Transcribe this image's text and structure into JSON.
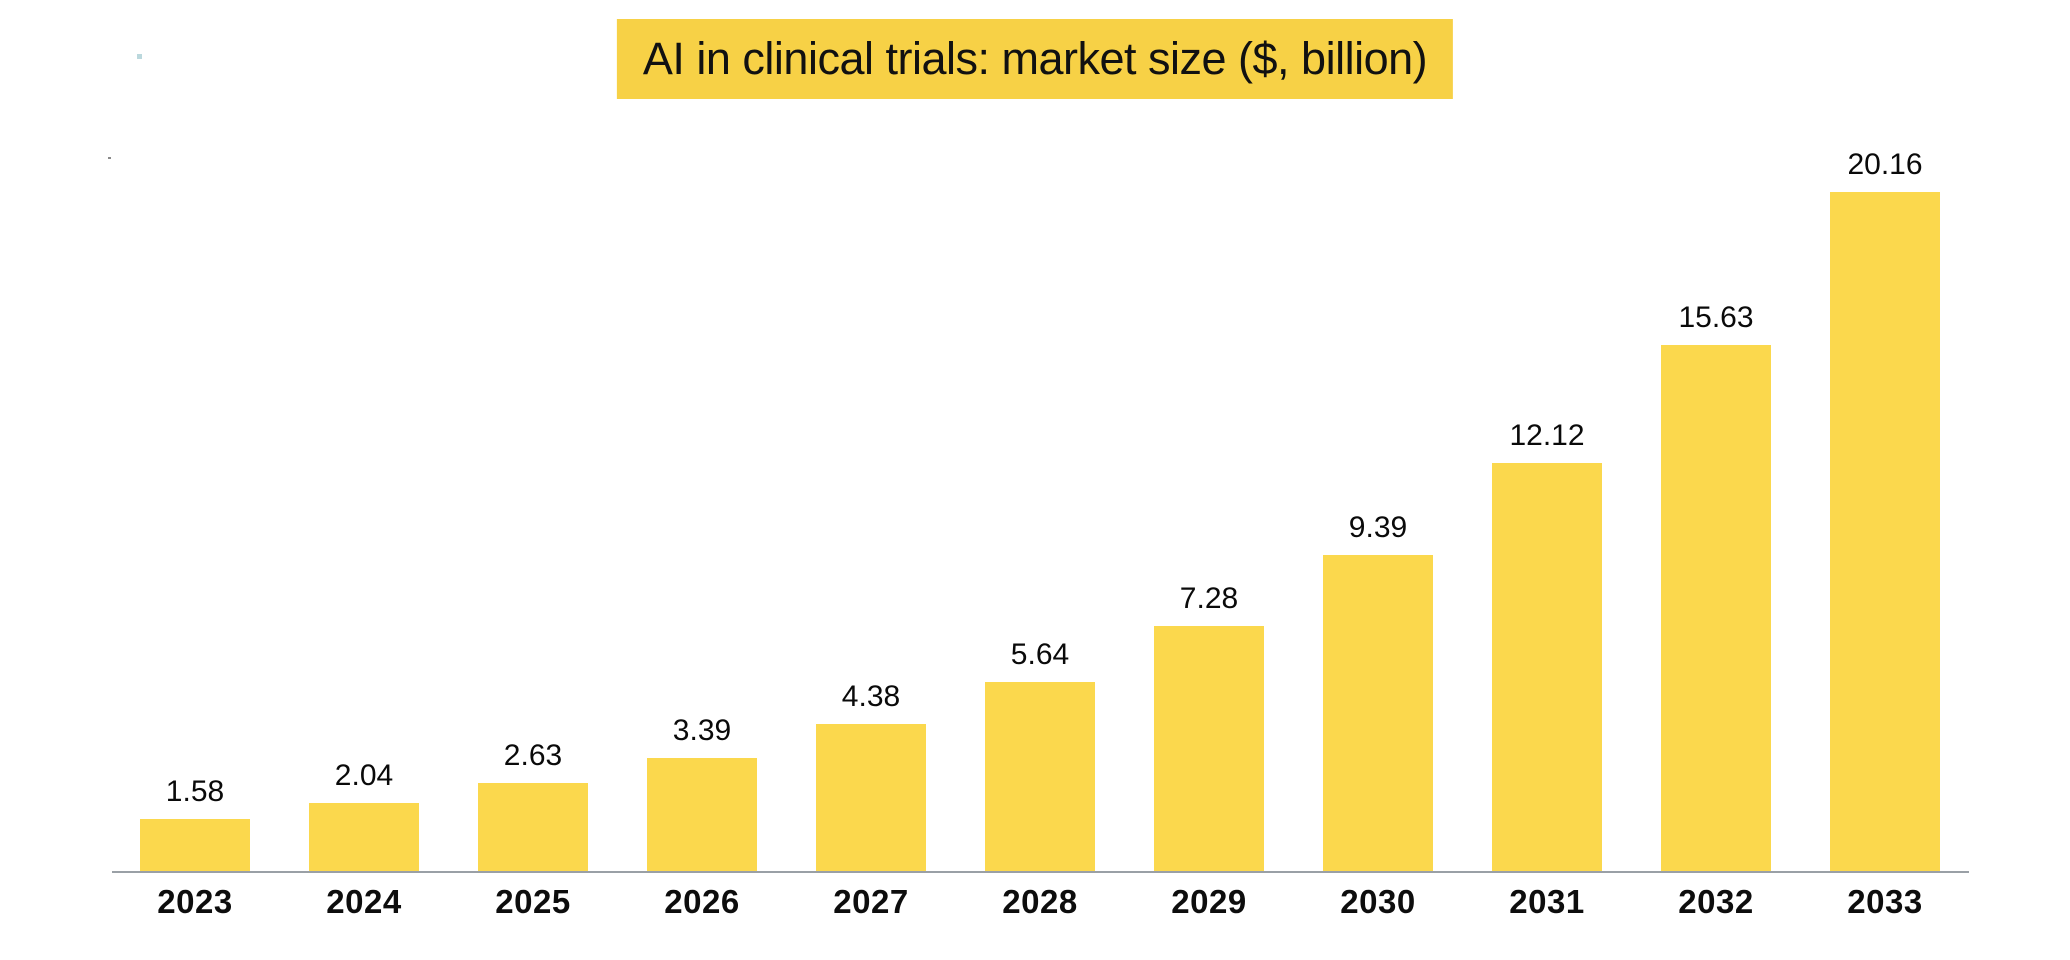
{
  "title": {
    "text": "AI in clinical trials: market size ($, billion)"
  },
  "colors": {
    "title_background": "#f7d146",
    "bar_fill": "#fbd84d",
    "axis_line": "#9aa0a6",
    "text": "#0a0a0a",
    "background": "#ffffff",
    "artifact_speck_blue": "#bbd8dd",
    "artifact_speck_gray": "#8a8a8a"
  },
  "chart_data": {
    "type": "bar",
    "title": "AI in clinical trials: market size ($, billion)",
    "categories": [
      "2023",
      "2024",
      "2025",
      "2026",
      "2027",
      "2028",
      "2029",
      "2030",
      "2031",
      "2032",
      "2033"
    ],
    "values": [
      1.58,
      2.04,
      2.63,
      3.39,
      4.38,
      5.64,
      7.28,
      9.39,
      12.12,
      15.63,
      20.16
    ],
    "value_labels": [
      "1.58",
      "2.04",
      "2.63",
      "3.39",
      "4.38",
      "5.64",
      "7.28",
      "9.39",
      "12.12",
      "15.63",
      "20.16"
    ],
    "xlabel": "",
    "ylabel": "",
    "ylim": [
      0,
      21
    ],
    "grid": false,
    "legend_position": "none",
    "y_axis_visible": false,
    "x_baseline_visible": true,
    "value_labels_position": "above-bars"
  }
}
